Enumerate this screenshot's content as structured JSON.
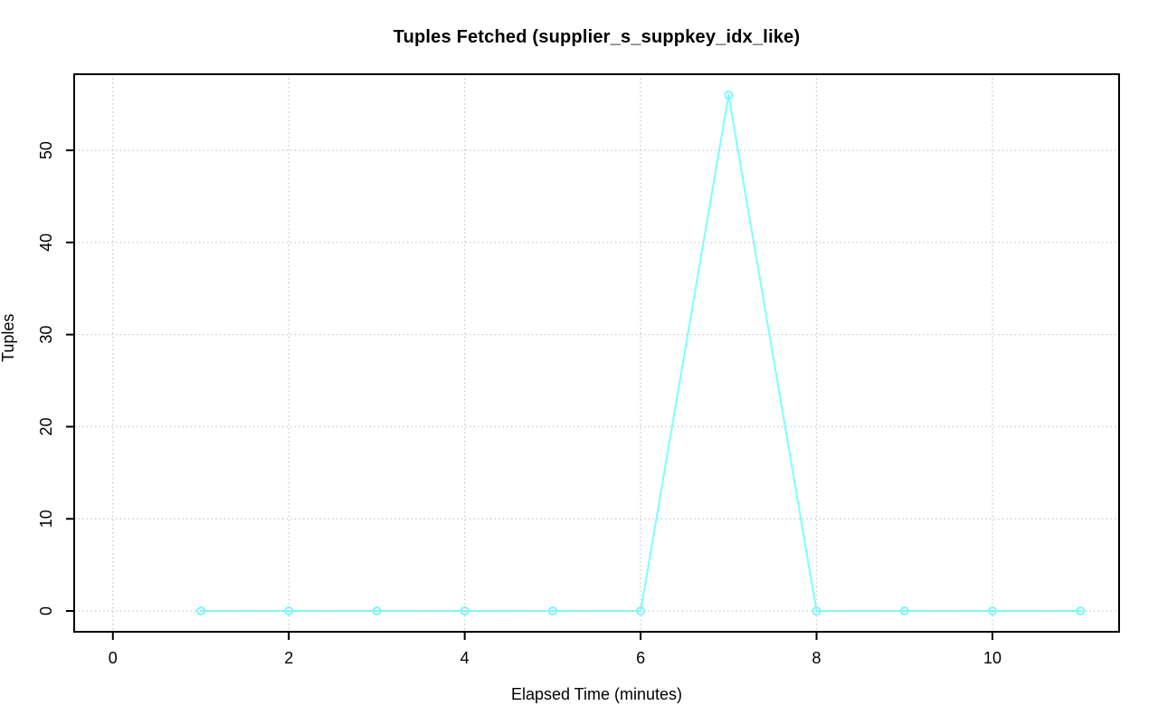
{
  "chart_data": {
    "type": "line",
    "title": "Tuples Fetched (supplier_s_suppkey_idx_like)",
    "xlabel": "Elapsed Time (minutes)",
    "ylabel": "Tuples",
    "x": [
      1,
      2,
      3,
      4,
      5,
      6,
      7,
      8,
      9,
      10,
      11
    ],
    "values": [
      0,
      0,
      0,
      0,
      0,
      0,
      56,
      0,
      0,
      0,
      0
    ],
    "xticks": [
      0,
      2,
      4,
      6,
      8,
      10
    ],
    "yticks": [
      0,
      10,
      20,
      30,
      40,
      50
    ],
    "xlim": [
      -0.44,
      11.44
    ],
    "ylim": [
      -2.26,
      58.26
    ],
    "grid": true,
    "grid_style": "dotted",
    "marker": "open-circle",
    "legend_position": "none",
    "colors": {
      "line": "#7cffff",
      "marker": "#6bfcfc",
      "grid": "#c6c6c6",
      "axis": "#000000",
      "text": "#000000",
      "background": "#ffffff"
    }
  }
}
